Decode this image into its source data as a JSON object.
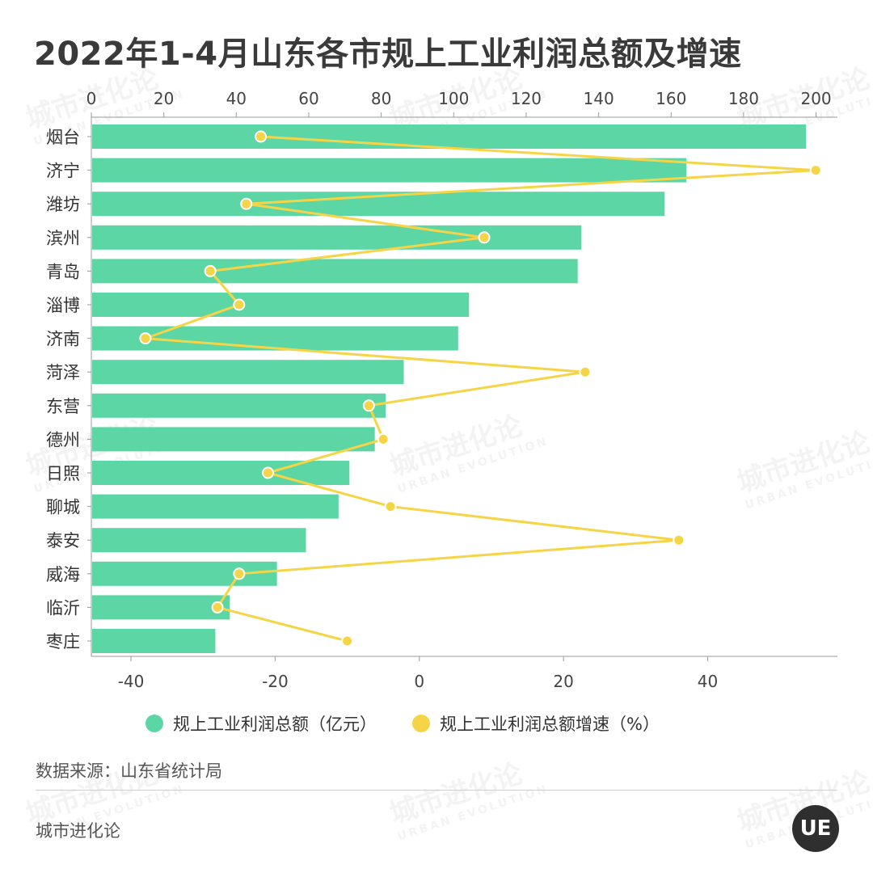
{
  "chart_data": {
    "type": "bar",
    "title": "2022年1-4月山东各市规上工业利润总额及增速",
    "categories": [
      "烟台",
      "济宁",
      "潍坊",
      "滨州",
      "青岛",
      "淄博",
      "济南",
      "菏泽",
      "东营",
      "德州",
      "日照",
      "聊城",
      "泰安",
      "威海",
      "临沂",
      "枣庄"
    ],
    "series": [
      {
        "name": "规上工业利润总额（亿元）",
        "type": "bar",
        "axis": "top",
        "color": "#5cd6a4",
        "values": [
          197,
          164,
          158,
          135,
          134,
          104,
          101,
          86,
          81,
          78,
          71,
          68,
          59,
          51,
          38,
          34
        ]
      },
      {
        "name": "规上工业利润总额增速（%）",
        "type": "line",
        "axis": "bottom",
        "color": "#f5d547",
        "values": [
          -22,
          55,
          -24,
          9,
          -29,
          -25,
          -38,
          23,
          -7,
          -5,
          -21,
          -4,
          36,
          -25,
          -28,
          -10
        ]
      }
    ],
    "top_axis": {
      "ticks": [
        0,
        20,
        40,
        60,
        80,
        100,
        120,
        140,
        160,
        180,
        200
      ],
      "range": [
        0,
        205
      ]
    },
    "bottom_axis": {
      "ticks": [
        -40,
        -20,
        0,
        20,
        40
      ],
      "range": [
        -45.5,
        58
      ]
    },
    "legend_position": "bottom"
  },
  "legend": [
    {
      "label": "规上工业利润总额（亿元）",
      "color": "#5cd6a4"
    },
    {
      "label": "规上工业利润总额增速（%）",
      "color": "#f5d547"
    }
  ],
  "source": "数据来源：山东省统计局",
  "brand": "城市进化论",
  "logo_text": "UE",
  "watermark": {
    "cn": "城市进化论",
    "en": "URBAN EVOLUTION"
  }
}
